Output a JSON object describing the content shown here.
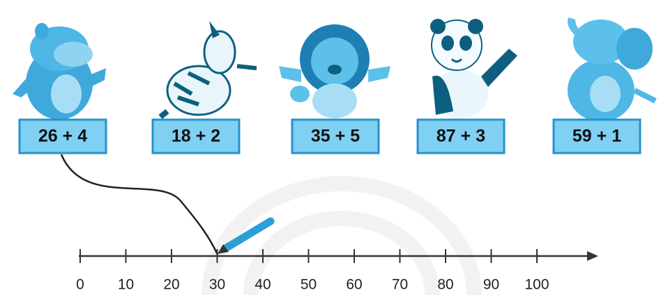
{
  "cards": [
    "26 + 4",
    "18 + 2",
    "35 + 5",
    "87 + 3",
    "59 + 1"
  ],
  "number_line": {
    "ticks": [
      "0",
      "10",
      "20",
      "30",
      "40",
      "50",
      "60",
      "70",
      "80",
      "90",
      "100"
    ]
  }
}
